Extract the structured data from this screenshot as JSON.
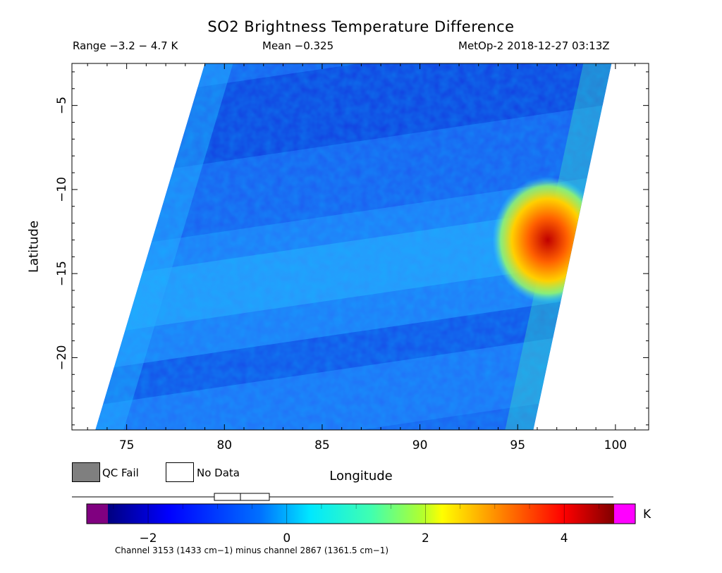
{
  "chart_data": {
    "type": "heatmap",
    "title": "SO2 Brightness Temperature Difference",
    "subtitle_left": "Range −3.2 − 4.7 K",
    "subtitle_center": "Mean −0.325",
    "subtitle_right": "MetOp-2 2018-12-27 03:13Z",
    "xlabel": "Longitude",
    "ylabel": "Latitude",
    "xlim": [
      72.2,
      101.7
    ],
    "ylim": [
      -24.3,
      -2.5
    ],
    "x_ticks": [
      75,
      80,
      85,
      90,
      95,
      100
    ],
    "x_tick_labels": [
      "75",
      "80",
      "85",
      "90",
      "95",
      "100"
    ],
    "y_ticks": [
      -5,
      -10,
      -15,
      -20
    ],
    "y_tick_labels": [
      "−5",
      "−10",
      "−15",
      "−20"
    ],
    "swath": {
      "top_left_lon": 79.0,
      "top_right_lon": 99.8,
      "bottom_left_lon": 73.4,
      "bottom_right_lon": 95.8
    },
    "features": [
      {
        "region": "SO2 plume",
        "lon_range": [
          94.5,
          98.0
        ],
        "lat_range": [
          -15.5,
          -10.5
        ],
        "value_max_K": 4.7
      },
      {
        "region": "background",
        "typical_value_K": -1.0
      }
    ],
    "colorbar": {
      "ticks": [
        -2,
        0,
        2,
        4
      ],
      "tick_labels": [
        "−2",
        "0",
        "2",
        "4"
      ],
      "unit": "K",
      "low_color": "#800080",
      "high_color": "#ff00ff"
    },
    "legend": {
      "qc_fail": "QC Fail",
      "no_data": "No Data",
      "qc_fail_color": "#7f7f7f",
      "no_data_color": "#ffffff"
    },
    "footnote": "Channel 3153 (1433 cm−1) minus channel 2867 (1361.5 cm−1)"
  }
}
